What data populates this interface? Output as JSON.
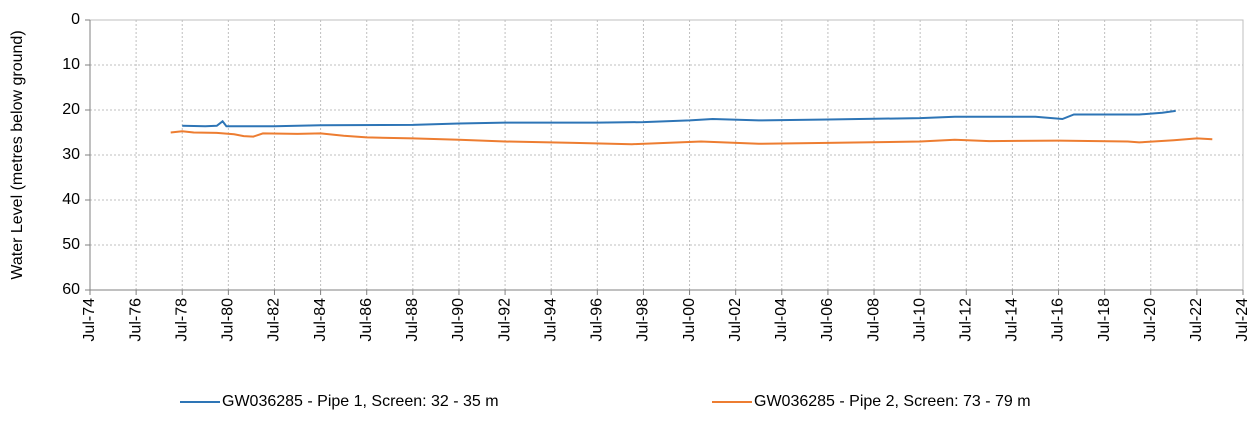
{
  "chart_data": {
    "type": "line",
    "y_label": "Water Level (metres below ground)",
    "y_inverted": true,
    "ylim": [
      0,
      60
    ],
    "yticks": [
      0,
      10,
      20,
      30,
      40,
      50,
      60
    ],
    "xlim": [
      "1974-07",
      "2024-07"
    ],
    "xticks": [
      {
        "value": "1974-07",
        "label": "Jul-74"
      },
      {
        "value": "1976-07",
        "label": "Jul-76"
      },
      {
        "value": "1978-07",
        "label": "Jul-78"
      },
      {
        "value": "1980-07",
        "label": "Jul-80"
      },
      {
        "value": "1982-07",
        "label": "Jul-82"
      },
      {
        "value": "1984-07",
        "label": "Jul-84"
      },
      {
        "value": "1986-07",
        "label": "Jul-86"
      },
      {
        "value": "1988-07",
        "label": "Jul-88"
      },
      {
        "value": "1990-07",
        "label": "Jul-90"
      },
      {
        "value": "1992-07",
        "label": "Jul-92"
      },
      {
        "value": "1994-07",
        "label": "Jul-94"
      },
      {
        "value": "1996-07",
        "label": "Jul-96"
      },
      {
        "value": "1998-07",
        "label": "Jul-98"
      },
      {
        "value": "2000-07",
        "label": "Jul-00"
      },
      {
        "value": "2002-07",
        "label": "Jul-02"
      },
      {
        "value": "2004-07",
        "label": "Jul-04"
      },
      {
        "value": "2006-07",
        "label": "Jul-06"
      },
      {
        "value": "2008-07",
        "label": "Jul-08"
      },
      {
        "value": "2010-07",
        "label": "Jul-10"
      },
      {
        "value": "2012-07",
        "label": "Jul-12"
      },
      {
        "value": "2014-07",
        "label": "Jul-14"
      },
      {
        "value": "2016-07",
        "label": "Jul-16"
      },
      {
        "value": "2018-07",
        "label": "Jul-18"
      },
      {
        "value": "2020-07",
        "label": "Jul-20"
      },
      {
        "value": "2022-07",
        "label": "Jul-22"
      },
      {
        "value": "2024-07",
        "label": "Jul-24"
      }
    ],
    "grid": true,
    "legend": "bottom",
    "series": [
      {
        "name": "GW036285 - Pipe 1, Screen: 32 - 35 m",
        "color": "#2e75b6",
        "x": [
          "1978-07",
          "1979-07",
          "1980-01",
          "1980-04",
          "1980-06",
          "1982-07",
          "1984-07",
          "1988-07",
          "1990-07",
          "1992-07",
          "1996-07",
          "1998-07",
          "2000-07",
          "2001-07",
          "2003-07",
          "2006-07",
          "2010-07",
          "2012-01",
          "2015-07",
          "2016-09",
          "2017-03",
          "2020-01",
          "2021-01",
          "2021-08"
        ],
        "values": [
          23.5,
          23.6,
          23.5,
          22.5,
          23.6,
          23.6,
          23.4,
          23.3,
          23.0,
          22.8,
          22.8,
          22.7,
          22.3,
          22.0,
          22.3,
          22.1,
          21.8,
          21.5,
          21.5,
          22.0,
          21.0,
          21.0,
          20.6,
          20.2
        ]
      },
      {
        "name": "GW036285 - Pipe 2, Screen: 73 - 79 m",
        "color": "#ed7d31",
        "x": [
          "1978-01",
          "1978-07",
          "1979-01",
          "1980-01",
          "1980-10",
          "1981-03",
          "1981-08",
          "1982-01",
          "1983-07",
          "1984-07",
          "1985-07",
          "1986-07",
          "1988-07",
          "1990-07",
          "1992-07",
          "1995-07",
          "1998-01",
          "2001-01",
          "2003-07",
          "2006-07",
          "2010-07",
          "2012-01",
          "2013-07",
          "2016-07",
          "2019-07",
          "2020-01",
          "2021-07",
          "2022-07",
          "2023-03"
        ],
        "values": [
          25.0,
          24.7,
          25.0,
          25.1,
          25.4,
          25.8,
          25.9,
          25.2,
          25.3,
          25.2,
          25.7,
          26.1,
          26.3,
          26.6,
          27.0,
          27.3,
          27.6,
          27.0,
          27.5,
          27.3,
          27.0,
          26.6,
          26.9,
          26.8,
          27.0,
          27.2,
          26.7,
          26.3,
          26.5
        ]
      }
    ]
  }
}
